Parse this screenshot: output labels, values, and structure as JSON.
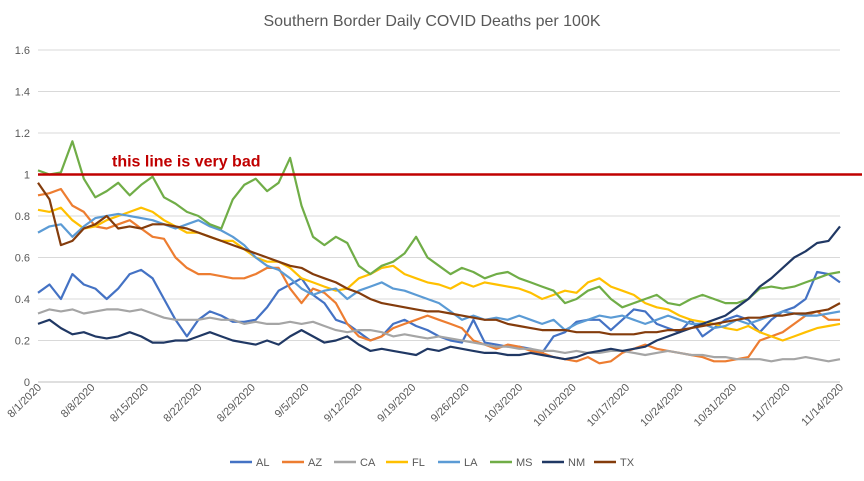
{
  "chart_data": {
    "type": "line",
    "title": "Southern Border Daily COVID Deaths per 100K",
    "xlabel": "",
    "ylabel": "",
    "ylim": [
      0,
      1.6
    ],
    "yticks": [
      "0",
      "0.2",
      "0.4",
      "0.6",
      "0.8",
      "1",
      "1.2",
      "1.4",
      "1.6"
    ],
    "xticks": [
      "8/1/2020",
      "8/8/2020",
      "8/15/2020",
      "8/22/2020",
      "8/29/2020",
      "9/5/2020",
      "9/12/2020",
      "9/19/2020",
      "9/26/2020",
      "10/3/2020",
      "10/10/2020",
      "10/17/2020",
      "10/24/2020",
      "10/31/2020",
      "11/7/2020",
      "11/14/2020"
    ],
    "grid": true,
    "legend_position": "bottom",
    "reference_line": {
      "value": 1.0,
      "color": "#c00000",
      "label": "this line is very bad"
    },
    "series": [
      {
        "name": "AL",
        "color": "#4472c4",
        "values": [
          0.43,
          0.47,
          0.4,
          0.52,
          0.47,
          0.45,
          0.4,
          0.45,
          0.52,
          0.54,
          0.5,
          0.4,
          0.3,
          0.22,
          0.3,
          0.34,
          0.32,
          0.29,
          0.29,
          0.3,
          0.36,
          0.44,
          0.47,
          0.5,
          0.42,
          0.38,
          0.3,
          0.28,
          0.24,
          0.2,
          0.22,
          0.28,
          0.3,
          0.27,
          0.25,
          0.22,
          0.2,
          0.19,
          0.3,
          0.19,
          0.18,
          0.17,
          0.17,
          0.16,
          0.14,
          0.22,
          0.24,
          0.29,
          0.3,
          0.3,
          0.25,
          0.3,
          0.35,
          0.34,
          0.28,
          0.26,
          0.24,
          0.3,
          0.22,
          0.26,
          0.3,
          0.32,
          0.3,
          0.24,
          0.3,
          0.34,
          0.36,
          0.4,
          0.53,
          0.52,
          0.48
        ]
      },
      {
        "name": "AZ",
        "color": "#ed7d31",
        "values": [
          0.9,
          0.91,
          0.93,
          0.85,
          0.82,
          0.75,
          0.74,
          0.76,
          0.78,
          0.74,
          0.7,
          0.69,
          0.6,
          0.55,
          0.52,
          0.52,
          0.51,
          0.5,
          0.5,
          0.52,
          0.55,
          0.55,
          0.45,
          0.38,
          0.45,
          0.43,
          0.38,
          0.28,
          0.22,
          0.2,
          0.22,
          0.26,
          0.28,
          0.3,
          0.32,
          0.3,
          0.28,
          0.26,
          0.2,
          0.18,
          0.16,
          0.18,
          0.17,
          0.15,
          0.14,
          0.12,
          0.11,
          0.1,
          0.12,
          0.09,
          0.1,
          0.14,
          0.16,
          0.18,
          0.16,
          0.15,
          0.14,
          0.13,
          0.12,
          0.1,
          0.1,
          0.11,
          0.12,
          0.2,
          0.22,
          0.24,
          0.28,
          0.32,
          0.34,
          0.3,
          0.3
        ]
      },
      {
        "name": "CA",
        "color": "#a5a5a5",
        "values": [
          0.33,
          0.35,
          0.34,
          0.35,
          0.33,
          0.34,
          0.35,
          0.35,
          0.34,
          0.35,
          0.33,
          0.31,
          0.3,
          0.3,
          0.3,
          0.31,
          0.3,
          0.3,
          0.28,
          0.29,
          0.28,
          0.28,
          0.29,
          0.28,
          0.29,
          0.27,
          0.25,
          0.24,
          0.25,
          0.25,
          0.24,
          0.22,
          0.23,
          0.22,
          0.21,
          0.22,
          0.21,
          0.2,
          0.19,
          0.18,
          0.17,
          0.17,
          0.16,
          0.16,
          0.15,
          0.15,
          0.14,
          0.15,
          0.14,
          0.14,
          0.15,
          0.15,
          0.14,
          0.13,
          0.14,
          0.15,
          0.14,
          0.13,
          0.13,
          0.12,
          0.12,
          0.11,
          0.11,
          0.11,
          0.1,
          0.11,
          0.11,
          0.12,
          0.11,
          0.1,
          0.11
        ]
      },
      {
        "name": "FL",
        "color": "#ffc000",
        "values": [
          0.83,
          0.82,
          0.84,
          0.78,
          0.74,
          0.75,
          0.78,
          0.8,
          0.82,
          0.84,
          0.82,
          0.78,
          0.75,
          0.72,
          0.72,
          0.7,
          0.68,
          0.68,
          0.64,
          0.6,
          0.58,
          0.58,
          0.55,
          0.5,
          0.48,
          0.46,
          0.44,
          0.45,
          0.5,
          0.52,
          0.55,
          0.56,
          0.52,
          0.5,
          0.48,
          0.47,
          0.45,
          0.48,
          0.46,
          0.48,
          0.47,
          0.46,
          0.45,
          0.43,
          0.4,
          0.42,
          0.44,
          0.43,
          0.48,
          0.5,
          0.46,
          0.44,
          0.42,
          0.38,
          0.36,
          0.35,
          0.32,
          0.3,
          0.29,
          0.28,
          0.26,
          0.25,
          0.27,
          0.24,
          0.22,
          0.2,
          0.22,
          0.24,
          0.26,
          0.27,
          0.28
        ]
      },
      {
        "name": "LA",
        "color": "#5b9bd5",
        "values": [
          0.72,
          0.75,
          0.76,
          0.7,
          0.75,
          0.79,
          0.8,
          0.81,
          0.8,
          0.79,
          0.78,
          0.76,
          0.74,
          0.76,
          0.78,
          0.75,
          0.73,
          0.7,
          0.66,
          0.6,
          0.56,
          0.54,
          0.5,
          0.45,
          0.42,
          0.44,
          0.45,
          0.4,
          0.44,
          0.46,
          0.48,
          0.45,
          0.44,
          0.42,
          0.4,
          0.38,
          0.34,
          0.3,
          0.32,
          0.3,
          0.31,
          0.3,
          0.32,
          0.3,
          0.28,
          0.3,
          0.25,
          0.28,
          0.3,
          0.32,
          0.31,
          0.32,
          0.3,
          0.28,
          0.3,
          0.32,
          0.3,
          0.28,
          0.28,
          0.26,
          0.27,
          0.3,
          0.28,
          0.3,
          0.32,
          0.34,
          0.33,
          0.32,
          0.32,
          0.33,
          0.34
        ]
      },
      {
        "name": "MS",
        "color": "#70ad47",
        "values": [
          1.02,
          1.0,
          1.01,
          1.16,
          0.98,
          0.89,
          0.92,
          0.96,
          0.9,
          0.95,
          0.99,
          0.89,
          0.86,
          0.82,
          0.8,
          0.76,
          0.74,
          0.88,
          0.95,
          0.98,
          0.92,
          0.96,
          1.08,
          0.85,
          0.7,
          0.66,
          0.7,
          0.67,
          0.56,
          0.52,
          0.56,
          0.58,
          0.62,
          0.7,
          0.6,
          0.56,
          0.52,
          0.55,
          0.53,
          0.5,
          0.52,
          0.53,
          0.5,
          0.48,
          0.46,
          0.44,
          0.38,
          0.4,
          0.44,
          0.46,
          0.4,
          0.36,
          0.38,
          0.4,
          0.42,
          0.38,
          0.37,
          0.4,
          0.42,
          0.4,
          0.38,
          0.38,
          0.4,
          0.45,
          0.46,
          0.45,
          0.46,
          0.48,
          0.5,
          0.52,
          0.53
        ]
      },
      {
        "name": "NM",
        "color": "#203864",
        "values": [
          0.28,
          0.3,
          0.26,
          0.23,
          0.24,
          0.22,
          0.21,
          0.22,
          0.24,
          0.22,
          0.19,
          0.19,
          0.2,
          0.2,
          0.22,
          0.24,
          0.22,
          0.2,
          0.19,
          0.18,
          0.2,
          0.18,
          0.22,
          0.25,
          0.22,
          0.19,
          0.2,
          0.22,
          0.18,
          0.15,
          0.16,
          0.15,
          0.14,
          0.13,
          0.16,
          0.15,
          0.17,
          0.16,
          0.15,
          0.14,
          0.14,
          0.13,
          0.13,
          0.14,
          0.13,
          0.12,
          0.11,
          0.12,
          0.14,
          0.15,
          0.16,
          0.15,
          0.16,
          0.17,
          0.2,
          0.22,
          0.24,
          0.26,
          0.28,
          0.3,
          0.32,
          0.36,
          0.4,
          0.46,
          0.5,
          0.55,
          0.6,
          0.63,
          0.67,
          0.68,
          0.75
        ]
      },
      {
        "name": "TX",
        "color": "#843c0c",
        "values": [
          0.96,
          0.88,
          0.66,
          0.68,
          0.74,
          0.76,
          0.8,
          0.74,
          0.75,
          0.74,
          0.76,
          0.76,
          0.75,
          0.74,
          0.72,
          0.7,
          0.68,
          0.66,
          0.64,
          0.62,
          0.6,
          0.58,
          0.56,
          0.55,
          0.52,
          0.5,
          0.48,
          0.45,
          0.43,
          0.4,
          0.38,
          0.37,
          0.36,
          0.35,
          0.34,
          0.34,
          0.33,
          0.32,
          0.31,
          0.3,
          0.3,
          0.28,
          0.27,
          0.26,
          0.25,
          0.25,
          0.25,
          0.24,
          0.24,
          0.24,
          0.23,
          0.23,
          0.23,
          0.24,
          0.24,
          0.25,
          0.25,
          0.26,
          0.27,
          0.28,
          0.29,
          0.3,
          0.31,
          0.31,
          0.32,
          0.32,
          0.33,
          0.33,
          0.34,
          0.35,
          0.38
        ]
      }
    ]
  }
}
